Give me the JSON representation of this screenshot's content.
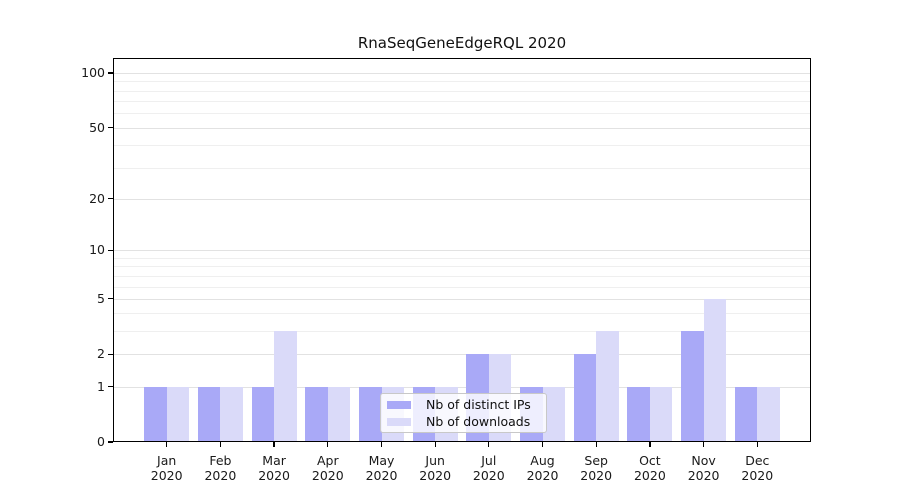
{
  "figure_title": "RnaSeqGeneEdgeRQL 2020",
  "chart_data": {
    "type": "bar",
    "title": "RnaSeqGeneEdgeRQL 2020",
    "categories": [
      "Jan 2020",
      "Feb 2020",
      "Mar 2020",
      "Apr 2020",
      "May 2020",
      "Jun 2020",
      "Jul 2020",
      "Aug 2020",
      "Sep 2020",
      "Oct 2020",
      "Nov 2020",
      "Dec 2020"
    ],
    "series": [
      {
        "name": "Nb of distinct IPs",
        "color": "#a9a9f7",
        "values": [
          1,
          1,
          1,
          1,
          1,
          1,
          2,
          1,
          2,
          1,
          3,
          1
        ]
      },
      {
        "name": "Nb of downloads",
        "color": "#dadaf9",
        "values": [
          1,
          1,
          3,
          1,
          1,
          1,
          2,
          1,
          3,
          1,
          5,
          1
        ]
      }
    ],
    "xlabel": "",
    "ylabel": "",
    "yscale": "log1p",
    "ylim": [
      0,
      121
    ],
    "y_major_ticks": [
      0,
      1,
      2,
      5,
      10,
      20,
      50,
      100
    ],
    "y_minor_gridlines": [
      3,
      4,
      6,
      7,
      8,
      9,
      30,
      40,
      60,
      70,
      80,
      90
    ],
    "grid": "horizontal",
    "legend_position": "lower-center",
    "colors": {
      "major_grid": "#e2e2e2",
      "minor_grid": "#efefef",
      "spine": "#000000",
      "background": "#ffffff",
      "text": "#1a1a1a"
    }
  }
}
